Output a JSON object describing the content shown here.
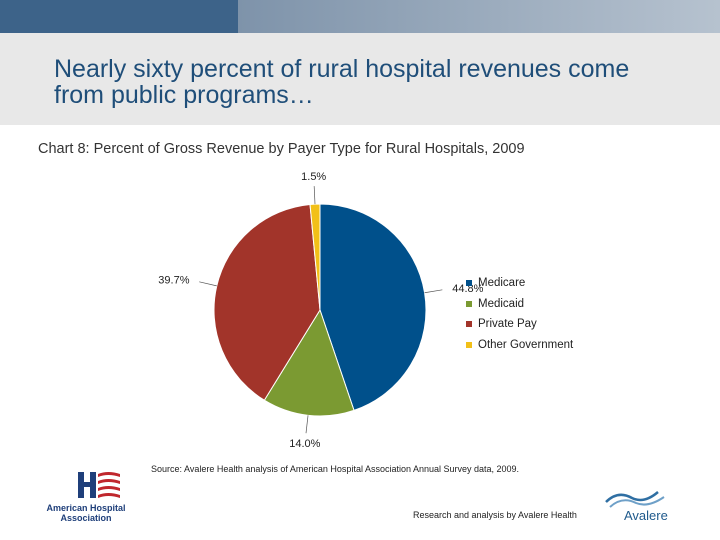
{
  "slide": {
    "title": "Nearly sixty percent of rural hospital revenues come from public programs…",
    "subtitle": "Chart 8: Percent of Gross Revenue by Payer Type for Rural Hospitals, 2009",
    "source": "Source: Avalere Health analysis of American Hospital Association Annual Survey data, 2009.",
    "credit": "Research and analysis by Avalere Health",
    "aha_logo_text": [
      "American Hospital",
      "Association"
    ],
    "avalere_logo_text": "Avalere"
  },
  "chart_data": {
    "type": "pie",
    "title": "Chart 8: Percent of Gross Revenue by Payer Type for Rural Hospitals, 2009",
    "categories": [
      "Medicare",
      "Medicaid",
      "Private Pay",
      "Other Government"
    ],
    "values": [
      44.8,
      14.0,
      39.7,
      1.5
    ],
    "labels": [
      "44.8%",
      "14.0%",
      "39.7%",
      "1.5%"
    ],
    "colors": [
      "#00508b",
      "#7b9a32",
      "#a2342a",
      "#f2c018"
    ],
    "legend_position": "right"
  }
}
